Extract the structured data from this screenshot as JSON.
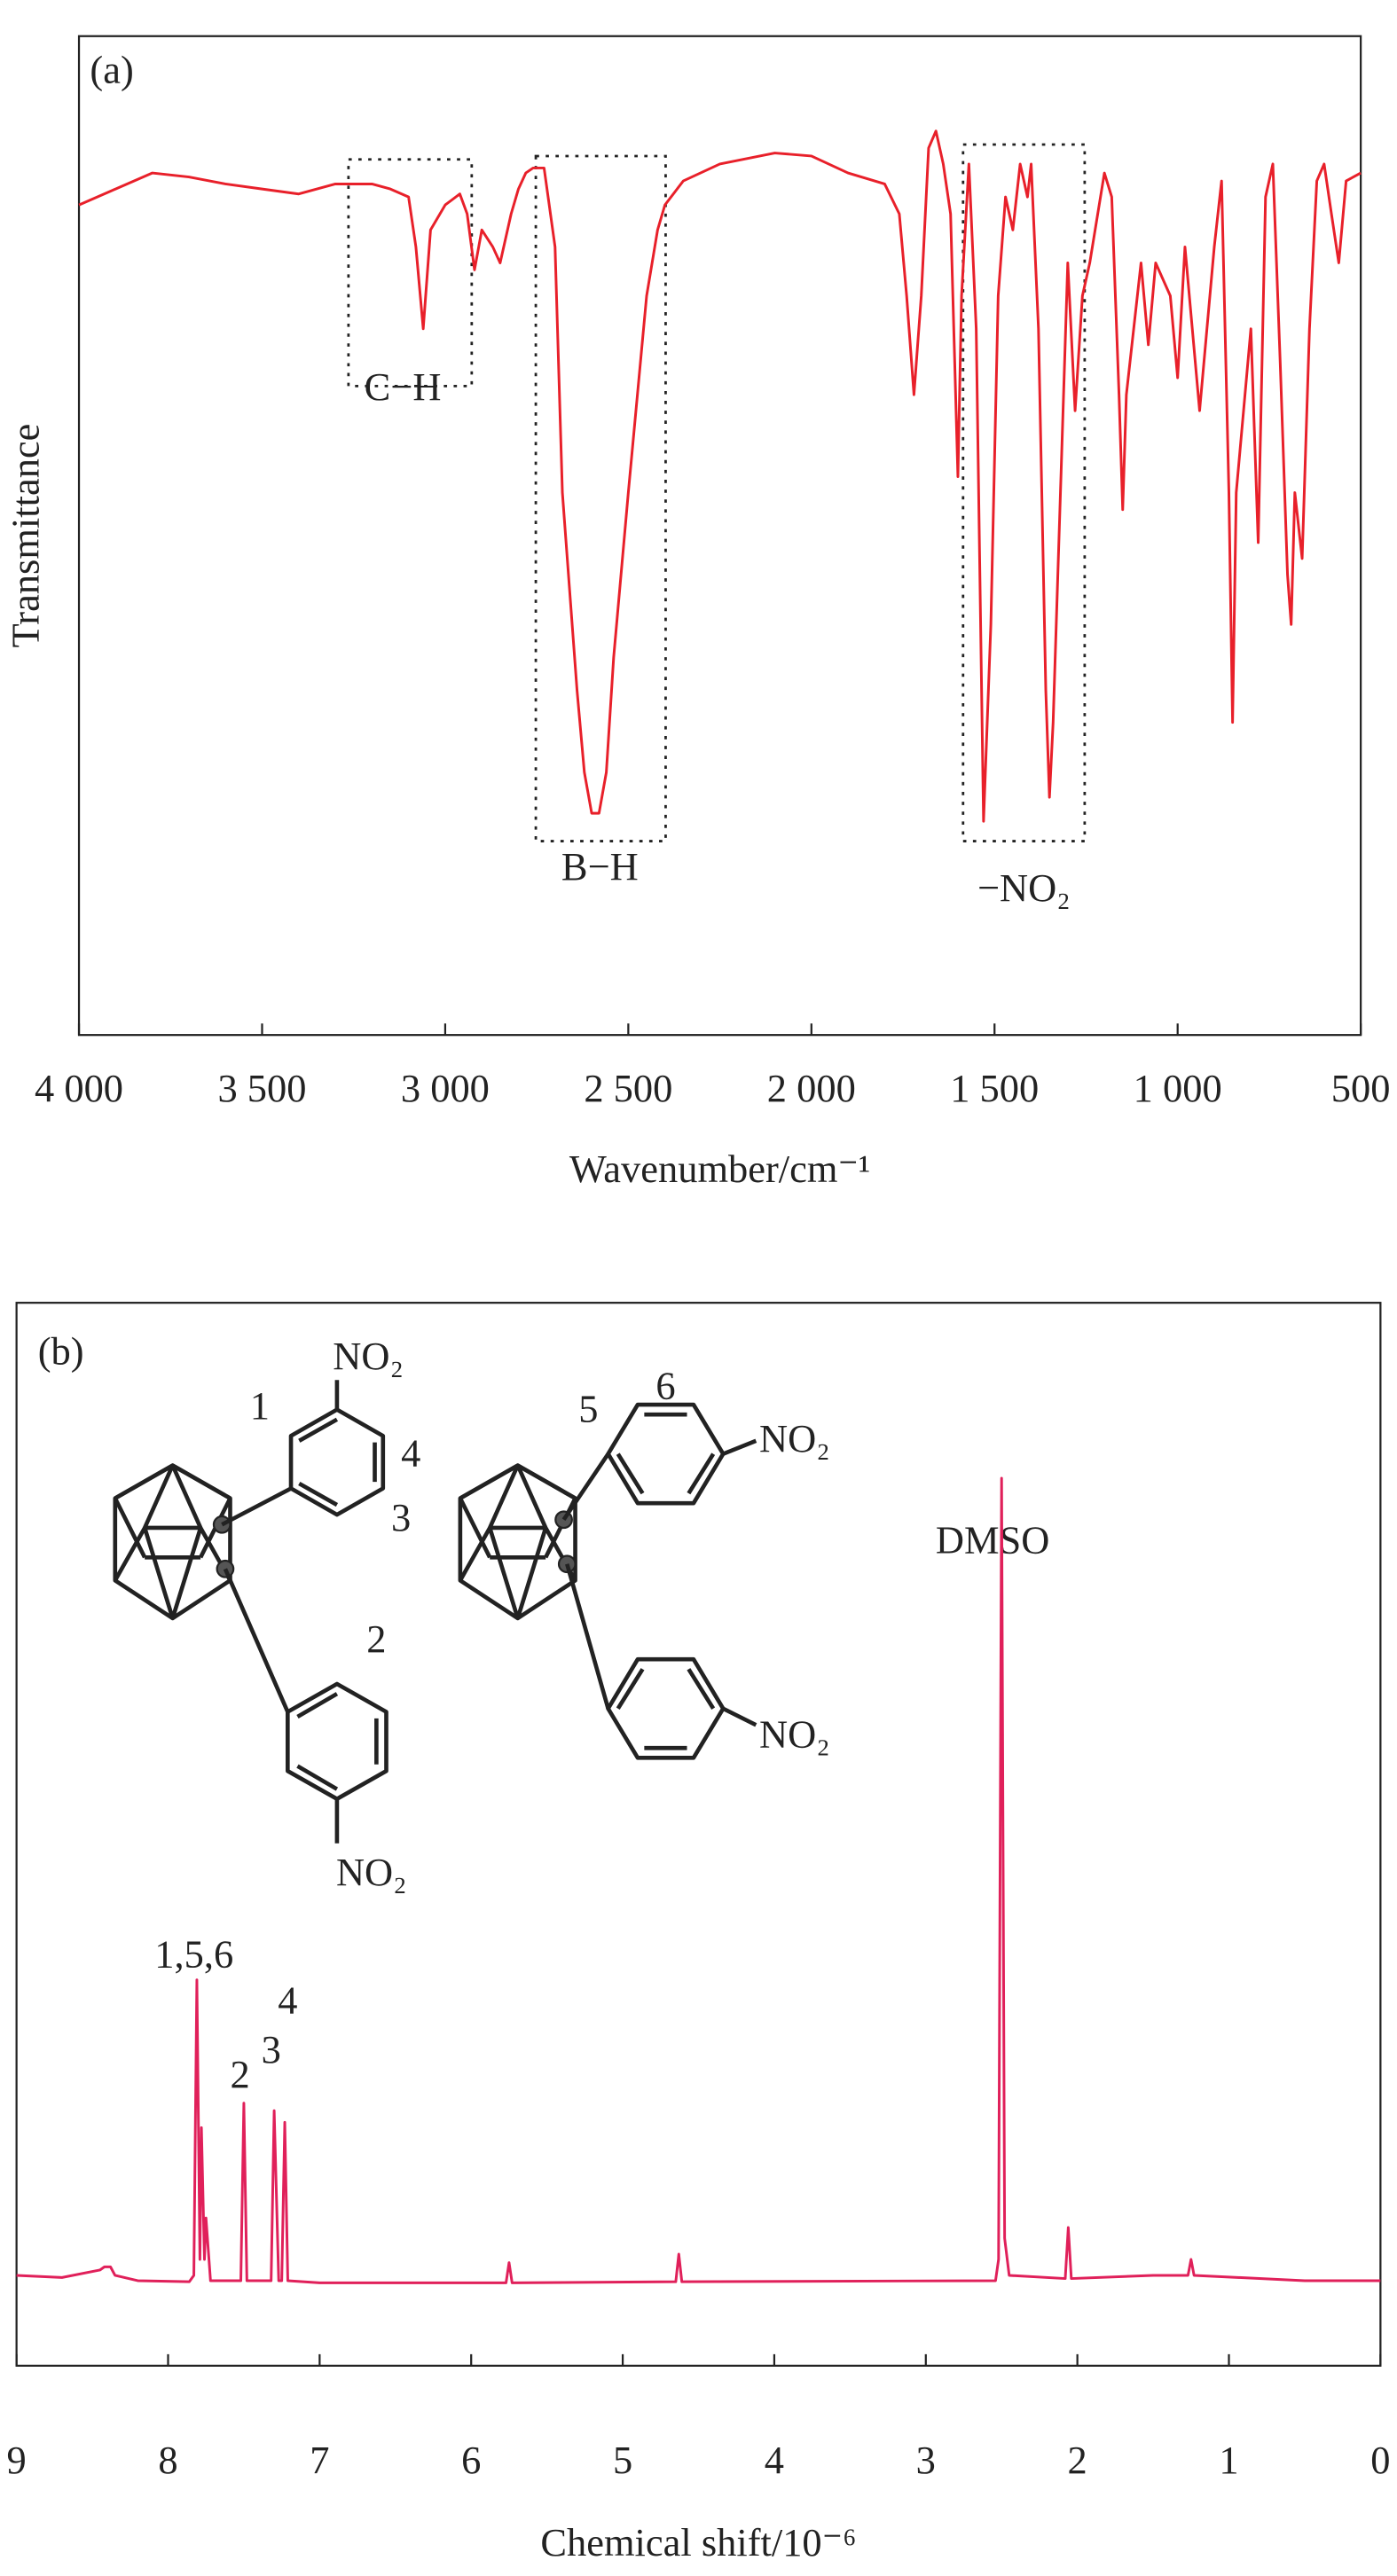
{
  "chart_data": [
    {
      "type": "line",
      "ylabel": "Transmittance",
      "xlabel": "Wavenumber/cm⁻¹",
      "annotations": [
        "(a)",
        "C−H",
        "B−H",
        "−NO₂"
      ],
      "xlim": [
        4000,
        500
      ],
      "ylim": [
        0,
        100
      ],
      "xticks": [
        {
          "value": 4000,
          "label": "4 000"
        },
        {
          "value": 3500,
          "label": "3 500"
        },
        {
          "value": 3000,
          "label": "3 000"
        },
        {
          "value": 2500,
          "label": "2 500"
        },
        {
          "value": 2000,
          "label": "2 000"
        },
        {
          "value": 1500,
          "label": "1 500"
        },
        {
          "value": 1000,
          "label": "1 000"
        },
        500
      ],
      "grid": false,
      "color": "#e8202a",
      "x": [
        4000,
        3900,
        3800,
        3700,
        3600,
        3500,
        3400,
        3300,
        3200,
        3150,
        3100,
        3080,
        3060,
        3040,
        3000,
        2960,
        2940,
        2920,
        2900,
        2870,
        2850,
        2820,
        2800,
        2780,
        2760,
        2730,
        2700,
        2680,
        2660,
        2640,
        2620,
        2600,
        2580,
        2560,
        2540,
        2500,
        2450,
        2420,
        2400,
        2350,
        2250,
        2100,
        2000,
        1900,
        1800,
        1760,
        1740,
        1720,
        1700,
        1680,
        1660,
        1640,
        1620,
        1600,
        1590,
        1570,
        1550,
        1530,
        1510,
        1490,
        1470,
        1450,
        1430,
        1410,
        1400,
        1380,
        1360,
        1350,
        1340,
        1320,
        1300,
        1280,
        1260,
        1240,
        1200,
        1180,
        1160,
        1150,
        1140,
        1120,
        1100,
        1080,
        1060,
        1020,
        1000,
        980,
        960,
        940,
        900,
        880,
        860,
        850,
        840,
        820,
        800,
        780,
        760,
        740,
        720,
        700,
        690,
        680,
        660,
        640,
        620,
        600,
        580,
        560,
        540,
        500
      ],
      "values": [
        83.1,
        84.7,
        86.3,
        85.9,
        85.2,
        84.7,
        84.2,
        85.2,
        85.2,
        84.7,
        83.9,
        78.9,
        70.7,
        80.6,
        83.1,
        84.2,
        82.2,
        76.6,
        80.6,
        78.9,
        77.3,
        82.2,
        84.7,
        86.3,
        86.8,
        86.8,
        78.9,
        54.3,
        44.4,
        34.5,
        26.3,
        22.2,
        22.2,
        26.3,
        37.8,
        54.3,
        74.0,
        80.6,
        83.1,
        85.5,
        87.2,
        88.3,
        88.0,
        86.3,
        85.2,
        82.2,
        74.0,
        64.1,
        74.0,
        88.8,
        90.5,
        87.2,
        82.2,
        55.9,
        74.0,
        87.2,
        70.7,
        21.4,
        41.1,
        74.0,
        83.9,
        80.6,
        87.2,
        83.9,
        87.2,
        70.7,
        34.5,
        23.8,
        31.3,
        54.3,
        77.3,
        62.5,
        74.0,
        77.3,
        86.3,
        83.9,
        64.1,
        52.6,
        64.1,
        70.7,
        77.3,
        69.1,
        77.3,
        74.0,
        65.8,
        78.9,
        70.7,
        62.5,
        78.9,
        85.5,
        54.3,
        31.3,
        54.3,
        62.5,
        70.7,
        49.3,
        83.9,
        87.2,
        67.4,
        46.1,
        41.1,
        54.3,
        47.7,
        70.7,
        85.5,
        87.2,
        82.2,
        77.3,
        85.5,
        86.3
      ]
    },
    {
      "type": "line",
      "xlabel": "Chemical shift/10⁻⁶",
      "annotations": [
        "(b)",
        "DMSO",
        "1,5,6",
        "2",
        "3",
        "4"
      ],
      "structure_labels": [
        "NO₂",
        "1",
        "4",
        "3",
        "2",
        "NO₂",
        "5",
        "6",
        "NO₂",
        "NO₂"
      ],
      "xlim": [
        9,
        0
      ],
      "ylim": [
        0,
        100
      ],
      "xticks": [
        9,
        8,
        7,
        6,
        5,
        4,
        3,
        2,
        1,
        0
      ],
      "grid": false,
      "color": "#e0205a",
      "x": [
        9,
        8.7,
        8.45,
        8.42,
        8.38,
        8.35,
        8.2,
        7.86,
        7.83,
        7.81,
        7.79,
        7.78,
        7.76,
        7.75,
        7.72,
        7.52,
        7.5,
        7.48,
        7.32,
        7.3,
        7.27,
        7.25,
        7.23,
        7.21,
        7,
        5.77,
        5.75,
        5.73,
        4.65,
        4.63,
        4.61,
        2.54,
        2.52,
        2.5,
        2.48,
        2.45,
        2.08,
        2.06,
        2.04,
        1.5,
        1.27,
        1.25,
        1.23,
        0.5,
        0
      ],
      "values": [
        8.5,
        8.3,
        9.0,
        9.3,
        9.3,
        8.5,
        8.0,
        7.9,
        8.5,
        36.3,
        10,
        22.4,
        10,
        13.9,
        8,
        8,
        24.7,
        8,
        8,
        24.0,
        8,
        8,
        22.9,
        8,
        7.8,
        7.8,
        9.7,
        7.8,
        7.9,
        10.5,
        7.9,
        8,
        10,
        83.5,
        12,
        8.5,
        8.2,
        13.0,
        8.2,
        8.5,
        8.5,
        10.0,
        8.5,
        8,
        8
      ]
    }
  ]
}
